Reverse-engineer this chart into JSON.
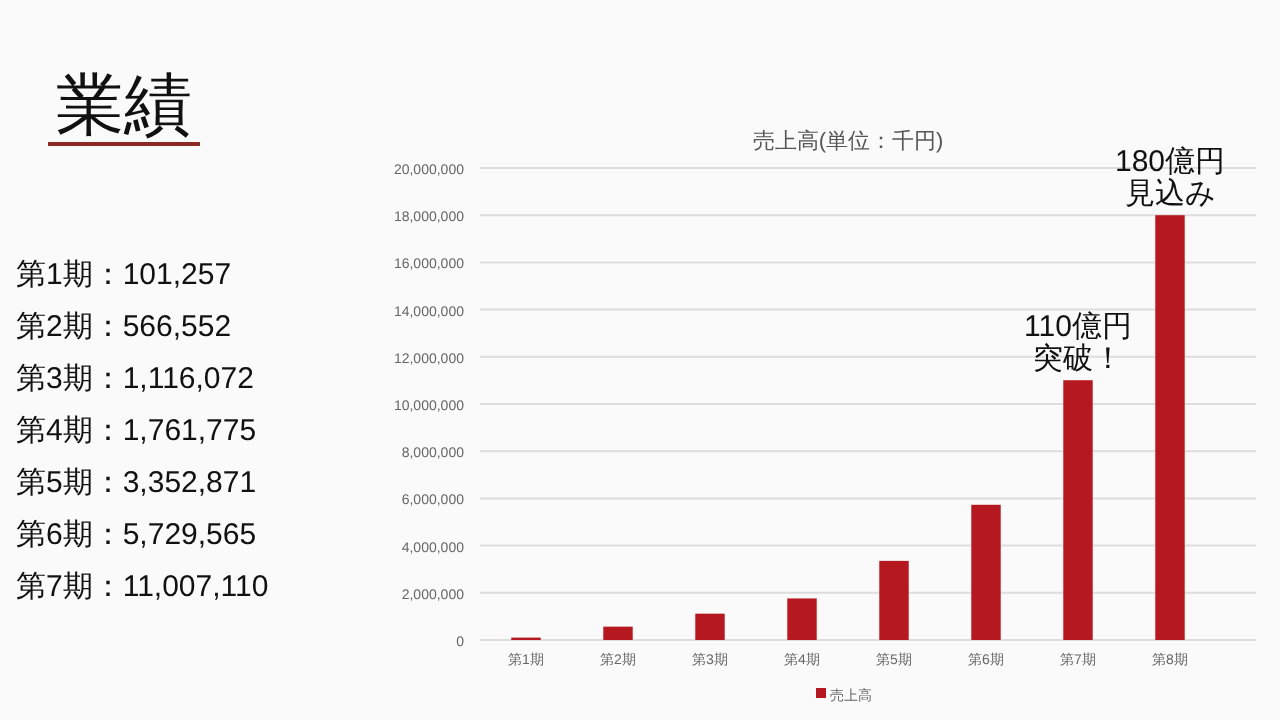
{
  "chart_data": {
    "type": "bar",
    "title": "業績",
    "subtitle": "売上高(単位：千円)",
    "categories": [
      "第1期",
      "第2期",
      "第3期",
      "第4期",
      "第5期",
      "第6期",
      "第7期",
      "第8期"
    ],
    "series": [
      {
        "name": "売上高",
        "color": "#b5191f",
        "values": [
          101257,
          566552,
          1116072,
          1761775,
          3352871,
          5729565,
          11007110,
          18000000
        ]
      }
    ],
    "ylim": [
      0,
      20000000
    ],
    "yticks": [
      {
        "value": 0,
        "label": "0"
      },
      {
        "value": 2000000,
        "label": "2,000,000"
      },
      {
        "value": 4000000,
        "label": "4,000,000"
      },
      {
        "value": 6000000,
        "label": "6,000,000"
      },
      {
        "value": 8000000,
        "label": "8,000,000"
      },
      {
        "value": 10000000,
        "label": "10,000,000"
      },
      {
        "value": 12000000,
        "label": "12,000,000"
      },
      {
        "value": 14000000,
        "label": "14,000,000"
      },
      {
        "value": 16000000,
        "label": "16,000,000"
      },
      {
        "value": 18000000,
        "label": "18,000,000"
      },
      {
        "value": 20000000,
        "label": "20,000,000"
      }
    ],
    "grid": "y",
    "legend": "bottom",
    "annotations": [
      {
        "text": "110億円",
        "x": "第7期",
        "y": 11007110
      },
      {
        "text": "突破！",
        "x": "第7期",
        "y": 11007110
      },
      {
        "text": "180億円",
        "x": "第8期",
        "y": 18000000
      },
      {
        "text": "見込み",
        "x": "第8期",
        "y": 18000000
      },
      "第1期：101,257",
      "第2期：566,552",
      "第3期：1,116,072",
      "第4期：1,761,775",
      "第5期：3,352,871",
      "第6期：5,729,565",
      "第7期：11,007,110"
    ]
  }
}
